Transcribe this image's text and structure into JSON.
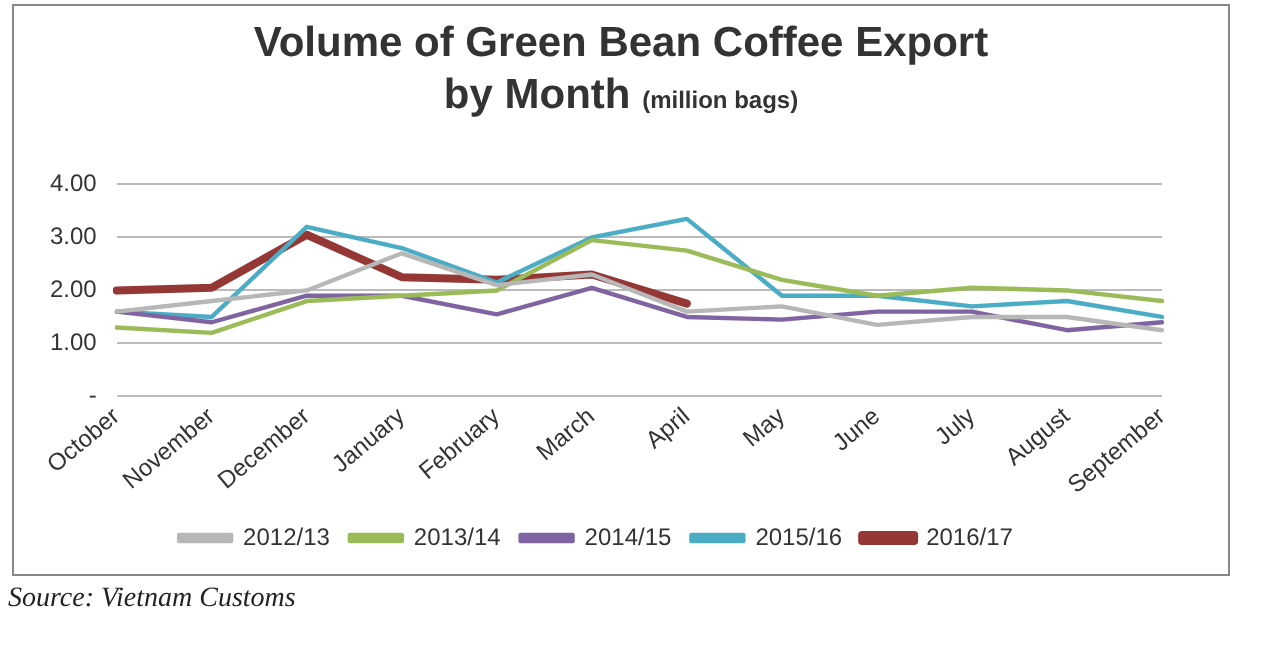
{
  "chart_data": {
    "type": "line",
    "title": "Volume of Green Bean Coffee Export",
    "subtitle": "by Month",
    "ylabel": "(million bags)",
    "categories": [
      "October",
      "November",
      "December",
      "January",
      "February",
      "March",
      "April",
      "May",
      "June",
      "July",
      "August",
      "September"
    ],
    "series": [
      {
        "name": "2012/13",
        "color": "#b7b7b7",
        "values": [
          1.6,
          1.8,
          2.0,
          2.7,
          2.1,
          2.3,
          1.6,
          1.7,
          1.35,
          1.5,
          1.5,
          1.25
        ]
      },
      {
        "name": "2013/14",
        "color": "#9bbb59",
        "values": [
          1.3,
          1.2,
          1.8,
          1.9,
          2.0,
          2.95,
          2.75,
          2.2,
          1.9,
          2.05,
          2.0,
          1.8
        ]
      },
      {
        "name": "2014/15",
        "color": "#8064a2",
        "values": [
          1.6,
          1.4,
          1.9,
          1.9,
          1.55,
          2.05,
          1.5,
          1.45,
          1.6,
          1.6,
          1.25,
          1.4
        ]
      },
      {
        "name": "2015/16",
        "color": "#4bacc6",
        "values": [
          1.6,
          1.5,
          3.2,
          2.8,
          2.15,
          3.0,
          3.35,
          1.9,
          1.9,
          1.7,
          1.8,
          1.5
        ]
      },
      {
        "name": "2016/17",
        "color": "#953735",
        "values": [
          2.0,
          2.05,
          3.05,
          2.25,
          2.2,
          2.3,
          1.75,
          null,
          null,
          null,
          null,
          null
        ]
      }
    ],
    "ylim": [
      0,
      4
    ],
    "yticks": [
      {
        "value": 0,
        "label": "-"
      },
      {
        "value": 1,
        "label": "1.00"
      },
      {
        "value": 2,
        "label": "2.00"
      },
      {
        "value": 3,
        "label": "3.00"
      },
      {
        "value": 4,
        "label": "4.00"
      }
    ],
    "grid": "y",
    "legend": "bottom",
    "marker": "none",
    "line_style": "solid",
    "annotations": [
      "Source: Vietnam Customs"
    ]
  }
}
